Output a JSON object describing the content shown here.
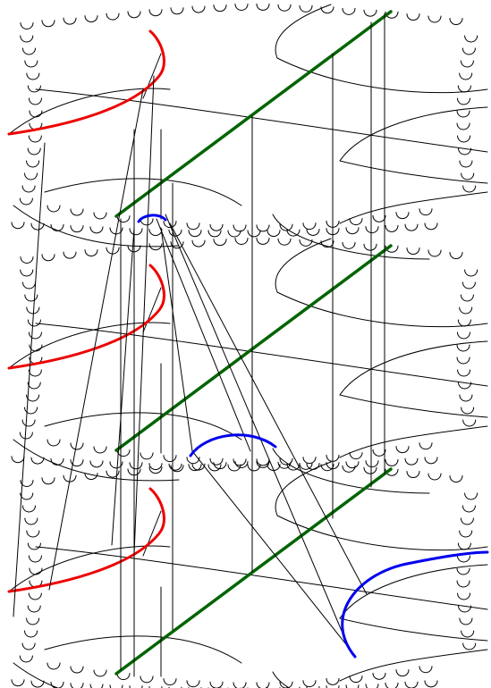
{
  "figure": {
    "kind": "three stacked copies of a hyperbolic-style arc tiling joined by vertical lines",
    "layers": 3,
    "colors": {
      "background": "#ffffff",
      "arcs": "#000000",
      "red_arcs": "#ee0000",
      "blue_arcs": "#0000ee",
      "green_lines": "#006400"
    }
  }
}
